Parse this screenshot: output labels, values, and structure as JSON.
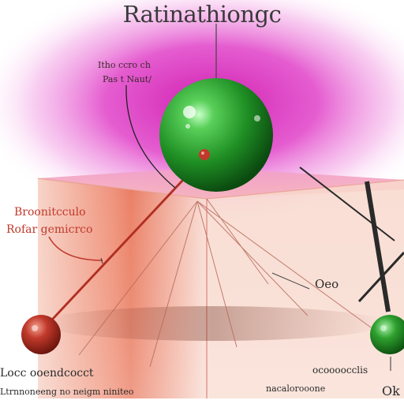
{
  "title": "Ratinathiongc",
  "labels": {
    "top_left_line1": "Itho ccro ch",
    "top_left_line2": "Pas t Naut/",
    "red_line1": "Broonitcculo",
    "red_line2": "Rofar gemicrco",
    "right_mid": "Oeo",
    "bottom_left_line1": "Locc ooendcocct",
    "bottom_left_line2": "Ltrnnoneeng no neigm niniteo",
    "bottom_right_line1": "ocoooocclis",
    "bottom_right_line2": "nacalorooone",
    "bottom_right_corner": "Ok"
  },
  "colors": {
    "glow": "#e040c8",
    "green_sphere": "#2ea02e",
    "red_sphere": "#c0392b",
    "red_line": "#c0392b",
    "cube_face": "#f6c4b8"
  }
}
